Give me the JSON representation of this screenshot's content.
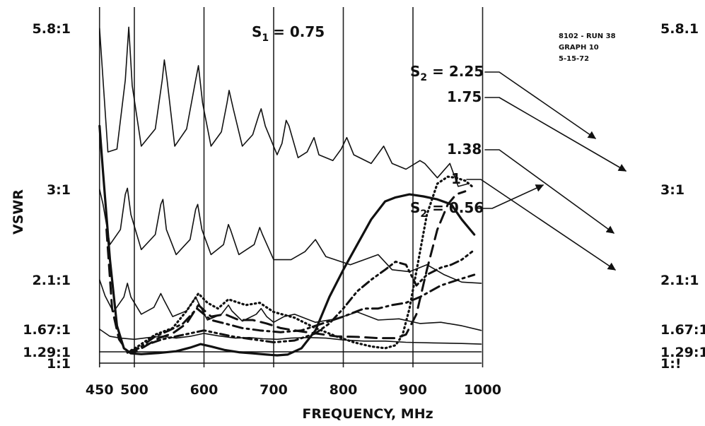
{
  "header": {
    "s1_label": "S",
    "s1_sub": "1",
    "s1_value": "= 0.75"
  },
  "annotation": [
    "8102 - RUN 38",
    "GRAPH 10",
    "5-15-72"
  ],
  "chart_data": {
    "type": "line",
    "xlabel": "FREQUENCY, MHz",
    "ylabel": "VSWR",
    "xlim": [
      450,
      1000
    ],
    "x_ticks": [
      "450",
      "500",
      "600",
      "700",
      "800",
      "900",
      "1000"
    ],
    "x_tick_values": [
      450,
      500,
      600,
      700,
      800,
      900,
      1000
    ],
    "left_y_ticks": [
      "5.8:1",
      "3:1",
      "2.1:1",
      "1.67:1",
      "1.29:1",
      "1:1"
    ],
    "right_y_ticks": [
      "5.8.1",
      "3:1",
      "2.1:1",
      "1.67:1",
      "1.29:1",
      "1:!"
    ],
    "y_tick_values": [
      5.8,
      3.0,
      2.1,
      1.67,
      1.29,
      1.0
    ],
    "grid": "vertical lines at 450, 500, 600, 700, 800, 900, 1000 MHz",
    "series_labels": [
      {
        "prefix": "S",
        "sub": "2",
        "text": " = 2.25"
      },
      {
        "prefix": "",
        "sub": "",
        "text": "1.75"
      },
      {
        "prefix": "",
        "sub": "",
        "text": "1.38"
      },
      {
        "prefix": "",
        "sub": "",
        "text": "1"
      },
      {
        "prefix": "S",
        "sub": "2",
        "text": " = 0.56"
      }
    ],
    "baselines": [
      {
        "vswr": 5.8,
        "style": "thin",
        "points": [
          [
            450,
            5.8
          ],
          [
            462,
            3.65
          ],
          [
            475,
            3.7
          ],
          [
            487,
            4.9
          ],
          [
            492,
            5.82
          ],
          [
            497,
            4.8
          ],
          [
            510,
            3.75
          ],
          [
            530,
            4.05
          ],
          [
            540,
            4.9
          ],
          [
            543,
            5.25
          ],
          [
            547,
            4.9
          ],
          [
            558,
            3.75
          ],
          [
            575,
            4.05
          ],
          [
            588,
            4.9
          ],
          [
            592,
            5.15
          ],
          [
            598,
            4.5
          ],
          [
            610,
            3.75
          ],
          [
            625,
            4.0
          ],
          [
            633,
            4.5
          ],
          [
            636,
            4.72
          ],
          [
            642,
            4.4
          ],
          [
            655,
            3.75
          ],
          [
            670,
            3.95
          ],
          [
            679,
            4.3
          ],
          [
            682,
            4.4
          ],
          [
            688,
            4.1
          ],
          [
            705,
            3.6
          ],
          [
            712,
            3.8
          ],
          [
            718,
            4.2
          ],
          [
            722,
            4.1
          ],
          [
            735,
            3.55
          ],
          [
            748,
            3.65
          ],
          [
            758,
            3.9
          ],
          [
            765,
            3.6
          ],
          [
            785,
            3.5
          ],
          [
            797,
            3.7
          ],
          [
            805,
            3.9
          ],
          [
            815,
            3.6
          ],
          [
            840,
            3.45
          ],
          [
            858,
            3.75
          ],
          [
            870,
            3.45
          ],
          [
            890,
            3.35
          ],
          [
            910,
            3.5
          ],
          [
            917,
            3.45
          ],
          [
            935,
            3.2
          ],
          [
            953,
            3.45
          ],
          [
            965,
            3.05
          ],
          [
            980,
            3.1
          ]
        ]
      },
      {
        "vswr": 3.0,
        "style": "thin",
        "points": [
          [
            450,
            3.0
          ],
          [
            455,
            2.85
          ],
          [
            465,
            2.45
          ],
          [
            480,
            2.6
          ],
          [
            487,
            2.95
          ],
          [
            490,
            3.02
          ],
          [
            495,
            2.75
          ],
          [
            510,
            2.4
          ],
          [
            530,
            2.55
          ],
          [
            538,
            2.85
          ],
          [
            541,
            2.9
          ],
          [
            546,
            2.6
          ],
          [
            560,
            2.35
          ],
          [
            580,
            2.5
          ],
          [
            588,
            2.8
          ],
          [
            591,
            2.85
          ],
          [
            597,
            2.6
          ],
          [
            610,
            2.35
          ],
          [
            628,
            2.45
          ],
          [
            635,
            2.65
          ],
          [
            638,
            2.6
          ],
          [
            650,
            2.35
          ],
          [
            672,
            2.45
          ],
          [
            680,
            2.62
          ],
          [
            684,
            2.55
          ],
          [
            700,
            2.3
          ],
          [
            725,
            2.3
          ],
          [
            745,
            2.38
          ],
          [
            760,
            2.5
          ],
          [
            775,
            2.33
          ],
          [
            810,
            2.25
          ],
          [
            830,
            2.3
          ],
          [
            850,
            2.35
          ],
          [
            870,
            2.2
          ],
          [
            895,
            2.18
          ],
          [
            920,
            2.25
          ],
          [
            945,
            2.15
          ],
          [
            970,
            2.08
          ],
          [
            998,
            2.07
          ]
        ]
      },
      {
        "vswr": 2.1,
        "style": "thin",
        "points": [
          [
            450,
            2.1
          ],
          [
            458,
            1.96
          ],
          [
            470,
            1.82
          ],
          [
            485,
            1.95
          ],
          [
            490,
            2.07
          ],
          [
            495,
            1.95
          ],
          [
            510,
            1.8
          ],
          [
            528,
            1.86
          ],
          [
            538,
            1.98
          ],
          [
            542,
            1.93
          ],
          [
            555,
            1.78
          ],
          [
            575,
            1.83
          ],
          [
            588,
            1.95
          ],
          [
            592,
            1.9
          ],
          [
            605,
            1.75
          ],
          [
            625,
            1.8
          ],
          [
            635,
            1.88
          ],
          [
            640,
            1.83
          ],
          [
            655,
            1.74
          ],
          [
            675,
            1.8
          ],
          [
            682,
            1.85
          ],
          [
            690,
            1.78
          ],
          [
            700,
            1.73
          ],
          [
            715,
            1.78
          ],
          [
            730,
            1.8
          ],
          [
            760,
            1.73
          ],
          [
            790,
            1.76
          ],
          [
            820,
            1.82
          ],
          [
            850,
            1.75
          ],
          [
            880,
            1.76
          ],
          [
            910,
            1.72
          ],
          [
            940,
            1.73
          ],
          [
            970,
            1.7
          ],
          [
            998,
            1.65
          ]
        ]
      },
      {
        "vswr": 1.67,
        "style": "thin",
        "points": [
          [
            450,
            1.67
          ],
          [
            465,
            1.55
          ],
          [
            480,
            1.52
          ],
          [
            500,
            1.5
          ],
          [
            520,
            1.53
          ],
          [
            540,
            1.55
          ],
          [
            560,
            1.52
          ],
          [
            580,
            1.55
          ],
          [
            600,
            1.6
          ],
          [
            620,
            1.56
          ],
          [
            645,
            1.52
          ],
          [
            665,
            1.53
          ],
          [
            685,
            1.51
          ],
          [
            705,
            1.5
          ],
          [
            725,
            1.52
          ],
          [
            750,
            1.53
          ],
          [
            775,
            1.52
          ],
          [
            800,
            1.49
          ],
          [
            830,
            1.47
          ],
          [
            860,
            1.47
          ],
          [
            890,
            1.45
          ],
          [
            930,
            1.44
          ],
          [
            970,
            1.43
          ],
          [
            998,
            1.42
          ]
        ]
      },
      {
        "vswr": 1.29,
        "style": "thin",
        "points": [
          [
            450,
            1.29
          ],
          [
            998,
            1.29
          ]
        ]
      },
      {
        "vswr": 1.0,
        "style": "thin",
        "points": [
          [
            450,
            1.0
          ],
          [
            998,
            1.0
          ]
        ]
      }
    ],
    "series": [
      {
        "name": "S2 = 2.25",
        "style": "dotted",
        "points": [
          [
            490,
            1.27
          ],
          [
            505,
            1.38
          ],
          [
            530,
            1.58
          ],
          [
            555,
            1.68
          ],
          [
            575,
            1.83
          ],
          [
            592,
            1.98
          ],
          [
            605,
            1.9
          ],
          [
            620,
            1.85
          ],
          [
            635,
            1.93
          ],
          [
            660,
            1.88
          ],
          [
            680,
            1.9
          ],
          [
            700,
            1.82
          ],
          [
            730,
            1.77
          ],
          [
            760,
            1.68
          ],
          [
            790,
            1.55
          ],
          [
            815,
            1.45
          ],
          [
            840,
            1.38
          ],
          [
            860,
            1.35
          ],
          [
            875,
            1.4
          ],
          [
            885,
            1.57
          ],
          [
            895,
            1.85
          ],
          [
            908,
            2.3
          ],
          [
            920,
            2.75
          ],
          [
            935,
            3.1
          ],
          [
            950,
            3.22
          ],
          [
            962,
            3.2
          ],
          [
            975,
            3.15
          ],
          [
            985,
            3.05
          ]
        ]
      },
      {
        "name": "1.75",
        "style": "dashed",
        "points": [
          [
            460,
            2.6
          ],
          [
            468,
            1.85
          ],
          [
            478,
            1.5
          ],
          [
            490,
            1.3
          ],
          [
            500,
            1.28
          ],
          [
            515,
            1.38
          ],
          [
            535,
            1.52
          ],
          [
            555,
            1.6
          ],
          [
            575,
            1.72
          ],
          [
            592,
            1.88
          ],
          [
            610,
            1.78
          ],
          [
            630,
            1.8
          ],
          [
            650,
            1.75
          ],
          [
            670,
            1.75
          ],
          [
            690,
            1.72
          ],
          [
            710,
            1.68
          ],
          [
            735,
            1.64
          ],
          [
            760,
            1.6
          ],
          [
            790,
            1.55
          ],
          [
            820,
            1.54
          ],
          [
            850,
            1.52
          ],
          [
            875,
            1.52
          ],
          [
            890,
            1.58
          ],
          [
            905,
            1.8
          ],
          [
            920,
            2.2
          ],
          [
            935,
            2.6
          ],
          [
            950,
            2.85
          ],
          [
            962,
            2.95
          ],
          [
            975,
            2.98
          ]
        ]
      },
      {
        "name": "1.38",
        "style": "dash-dot",
        "points": [
          [
            492,
            1.28
          ],
          [
            510,
            1.38
          ],
          [
            530,
            1.55
          ],
          [
            550,
            1.65
          ],
          [
            570,
            1.72
          ],
          [
            590,
            1.85
          ],
          [
            610,
            1.75
          ],
          [
            630,
            1.72
          ],
          [
            655,
            1.68
          ],
          [
            680,
            1.65
          ],
          [
            710,
            1.62
          ],
          [
            740,
            1.65
          ],
          [
            770,
            1.72
          ],
          [
            800,
            1.78
          ],
          [
            830,
            1.85
          ],
          [
            850,
            1.85
          ],
          [
            870,
            1.88
          ],
          [
            890,
            1.9
          ],
          [
            910,
            1.95
          ],
          [
            940,
            2.05
          ],
          [
            965,
            2.1
          ],
          [
            988,
            2.15
          ]
        ]
      },
      {
        "name": "1",
        "style": "dash-dot-dot",
        "points": [
          [
            495,
            1.28
          ],
          [
            515,
            1.4
          ],
          [
            540,
            1.5
          ],
          [
            560,
            1.55
          ],
          [
            580,
            1.6
          ],
          [
            600,
            1.65
          ],
          [
            620,
            1.6
          ],
          [
            640,
            1.55
          ],
          [
            670,
            1.5
          ],
          [
            700,
            1.45
          ],
          [
            730,
            1.48
          ],
          [
            760,
            1.6
          ],
          [
            780,
            1.72
          ],
          [
            800,
            1.85
          ],
          [
            820,
            2.0
          ],
          [
            840,
            2.1
          ],
          [
            860,
            2.2
          ],
          [
            875,
            2.28
          ],
          [
            890,
            2.25
          ],
          [
            905,
            2.05
          ],
          [
            920,
            2.15
          ],
          [
            940,
            2.22
          ],
          [
            955,
            2.25
          ],
          [
            970,
            2.3
          ],
          [
            985,
            2.38
          ]
        ]
      },
      {
        "name": "S2 = 0.56",
        "style": "solid-bold",
        "points": [
          [
            450,
            4.1
          ],
          [
            455,
            3.3
          ],
          [
            465,
            2.3
          ],
          [
            475,
            1.7
          ],
          [
            485,
            1.35
          ],
          [
            495,
            1.25
          ],
          [
            510,
            1.23
          ],
          [
            535,
            1.26
          ],
          [
            560,
            1.3
          ],
          [
            580,
            1.36
          ],
          [
            595,
            1.42
          ],
          [
            610,
            1.38
          ],
          [
            630,
            1.32
          ],
          [
            650,
            1.28
          ],
          [
            670,
            1.25
          ],
          [
            690,
            1.22
          ],
          [
            705,
            1.2
          ],
          [
            720,
            1.22
          ],
          [
            740,
            1.35
          ],
          [
            760,
            1.65
          ],
          [
            780,
            1.95
          ],
          [
            800,
            2.2
          ],
          [
            820,
            2.45
          ],
          [
            840,
            2.7
          ],
          [
            860,
            2.88
          ],
          [
            875,
            2.92
          ],
          [
            895,
            2.95
          ],
          [
            915,
            2.93
          ],
          [
            935,
            2.9
          ],
          [
            955,
            2.85
          ],
          [
            970,
            2.7
          ],
          [
            988,
            2.55
          ]
        ]
      }
    ]
  }
}
